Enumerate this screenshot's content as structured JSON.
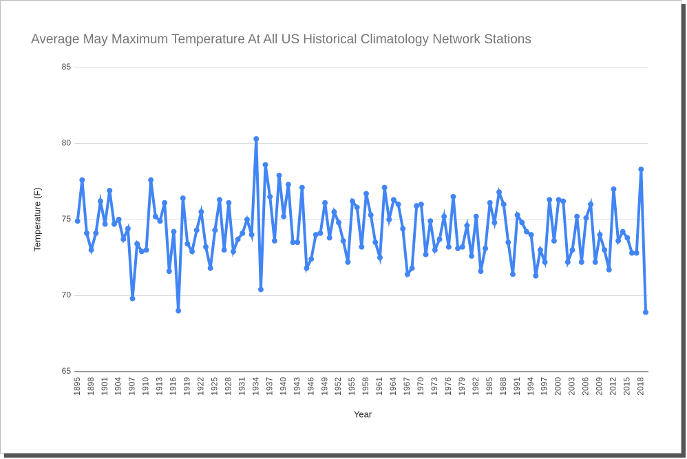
{
  "chart_data": {
    "type": "line",
    "title": "Average May Maximum Temperature At All US Historical Climatology Network Stations",
    "x_label": "Year",
    "y_label": "Temperature (F)",
    "x": [
      1895,
      1896,
      1897,
      1898,
      1899,
      1900,
      1901,
      1902,
      1903,
      1904,
      1905,
      1906,
      1907,
      1908,
      1909,
      1910,
      1911,
      1912,
      1913,
      1914,
      1915,
      1916,
      1917,
      1918,
      1919,
      1920,
      1921,
      1922,
      1923,
      1924,
      1925,
      1926,
      1927,
      1928,
      1929,
      1930,
      1931,
      1932,
      1933,
      1934,
      1935,
      1936,
      1937,
      1938,
      1939,
      1940,
      1941,
      1942,
      1943,
      1944,
      1945,
      1946,
      1947,
      1948,
      1949,
      1950,
      1951,
      1952,
      1953,
      1954,
      1955,
      1956,
      1957,
      1958,
      1959,
      1960,
      1961,
      1962,
      1963,
      1964,
      1965,
      1966,
      1967,
      1968,
      1969,
      1970,
      1971,
      1972,
      1973,
      1974,
      1975,
      1976,
      1977,
      1978,
      1979,
      1980,
      1981,
      1982,
      1983,
      1984,
      1985,
      1986,
      1987,
      1988,
      1989,
      1990,
      1991,
      1992,
      1993,
      1994,
      1995,
      1996,
      1997,
      1998,
      1999,
      2000,
      2001,
      2002,
      2003,
      2004,
      2005,
      2006,
      2007,
      2008,
      2009,
      2010,
      2011,
      2012,
      2013,
      2014,
      2015,
      2016,
      2017,
      2018,
      2019
    ],
    "values": [
      74.9,
      77.6,
      74.1,
      73.0,
      74.1,
      76.2,
      74.7,
      76.9,
      74.7,
      75.0,
      73.7,
      74.4,
      69.8,
      73.4,
      72.9,
      73.0,
      77.6,
      75.2,
      74.9,
      76.1,
      71.6,
      74.2,
      69.0,
      76.4,
      73.4,
      72.9,
      74.3,
      75.5,
      73.2,
      71.8,
      74.3,
      76.3,
      73.0,
      76.1,
      72.9,
      73.7,
      74.1,
      75.0,
      74.0,
      80.3,
      70.4,
      78.6,
      76.5,
      73.6,
      77.9,
      75.2,
      77.3,
      73.5,
      73.5,
      77.1,
      71.8,
      72.4,
      74.0,
      74.1,
      76.1,
      73.8,
      75.5,
      74.8,
      73.6,
      72.2,
      76.2,
      75.8,
      73.2,
      76.7,
      75.3,
      73.5,
      72.5,
      77.1,
      75.0,
      76.3,
      76.0,
      74.4,
      71.4,
      71.8,
      75.9,
      76.0,
      72.7,
      74.9,
      73.0,
      73.7,
      75.2,
      73.2,
      76.5,
      73.1,
      73.2,
      74.6,
      72.6,
      75.2,
      71.6,
      73.1,
      76.1,
      74.8,
      76.8,
      76.0,
      73.5,
      71.4,
      75.3,
      74.8,
      74.2,
      74.0,
      71.3,
      73.0,
      72.2,
      76.3,
      73.6,
      76.3,
      76.2,
      72.2,
      73.0,
      75.2,
      72.2,
      75.1,
      76.0,
      72.2,
      74.0,
      73.0,
      71.7,
      77.0,
      73.6,
      74.2,
      73.8,
      72.8,
      72.8,
      78.3,
      68.9
    ],
    "color": "#4285f4",
    "xlim": [
      1894.3,
      2019.6
    ],
    "xticks": [
      1895,
      1898,
      1901,
      1904,
      1907,
      1910,
      1913,
      1916,
      1919,
      1922,
      1925,
      1928,
      1931,
      1934,
      1937,
      1940,
      1943,
      1946,
      1949,
      1952,
      1955,
      1958,
      1961,
      1964,
      1967,
      1970,
      1973,
      1976,
      1979,
      1982,
      1985,
      1988,
      1991,
      1994,
      1997,
      2000,
      2003,
      2006,
      2009,
      2012,
      2015,
      2018
    ],
    "ylim": [
      65,
      85
    ],
    "yticks": [
      65,
      70,
      75,
      80,
      85
    ],
    "grid": true
  }
}
